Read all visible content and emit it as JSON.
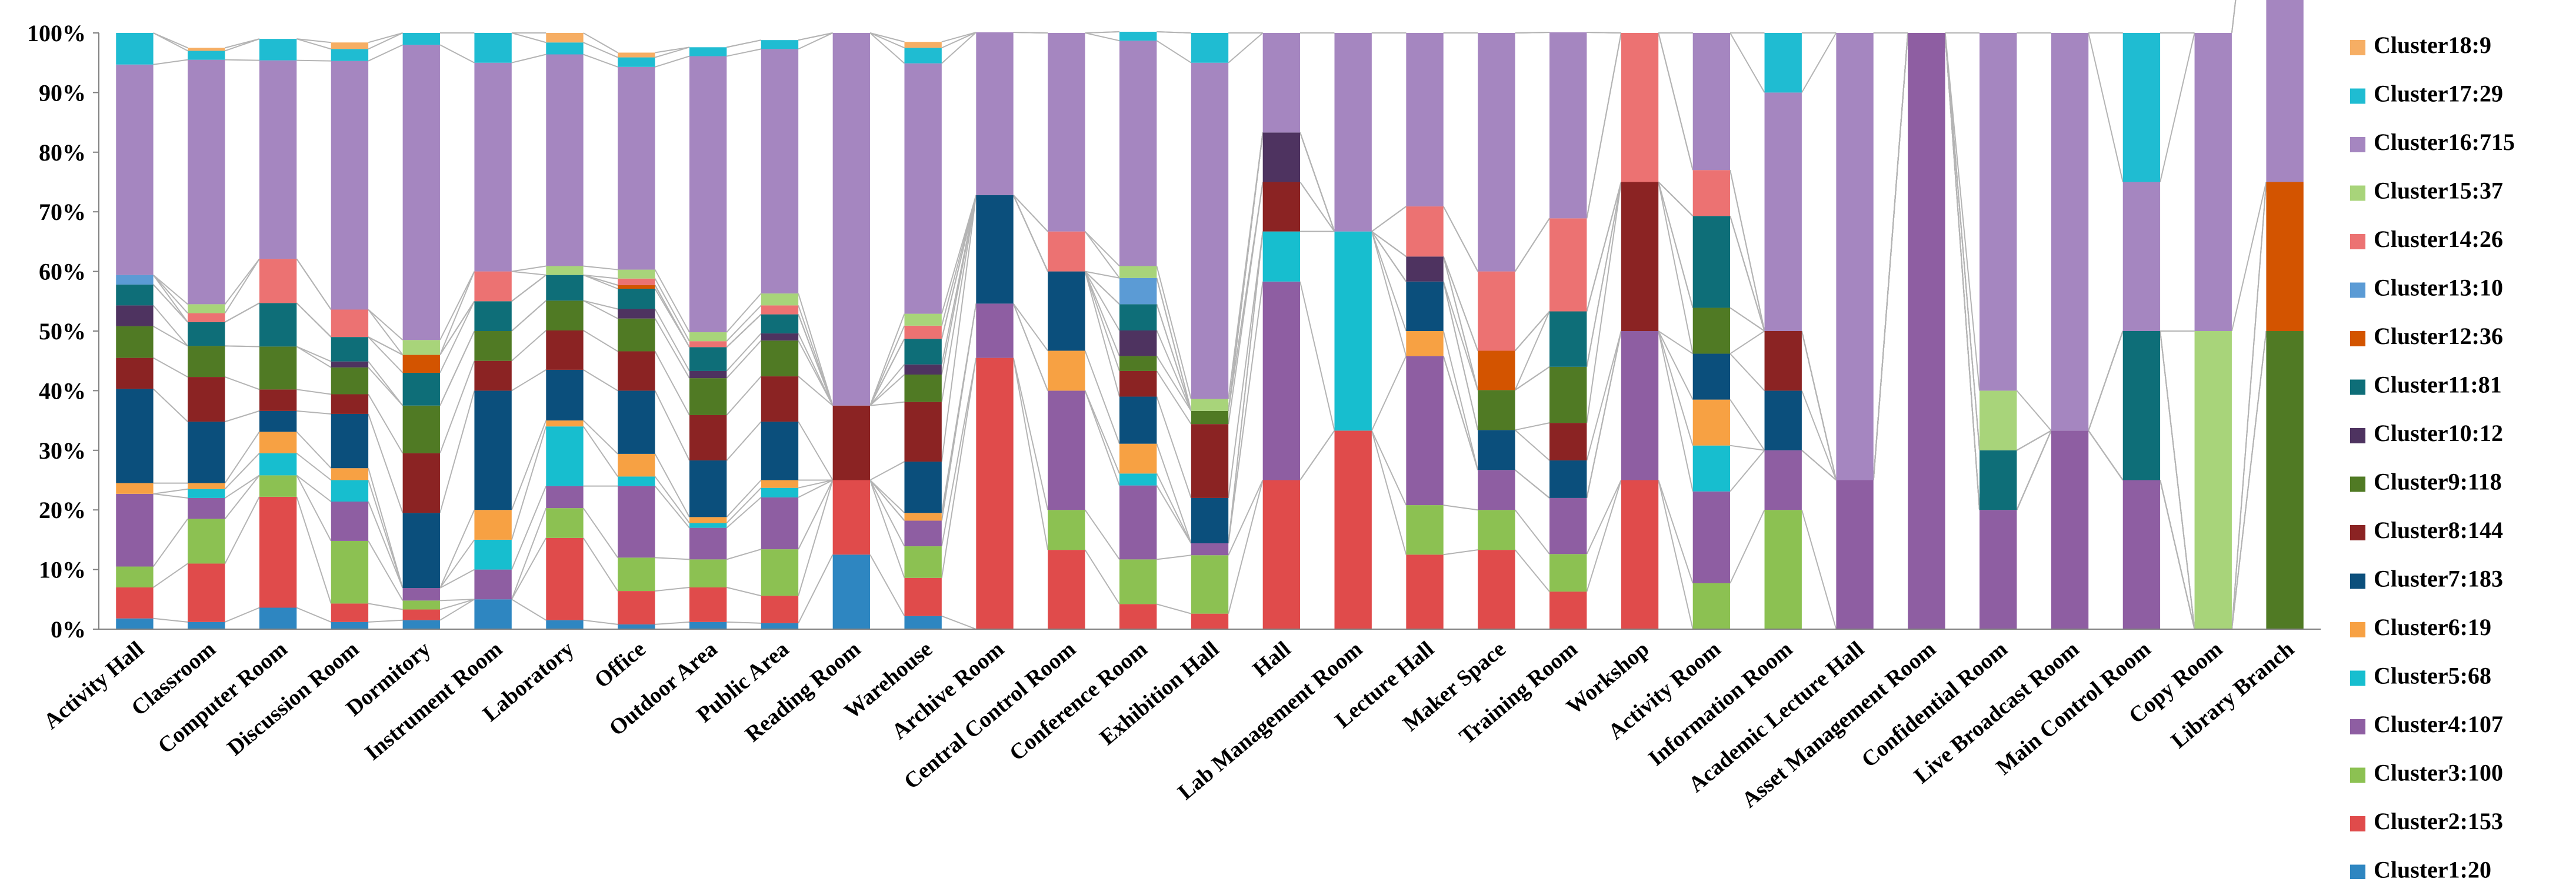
{
  "chart_data": {
    "type": "bar",
    "stacked": true,
    "normalized": true,
    "ylim": [
      0,
      100
    ],
    "yticks": [
      "0%",
      "10%",
      "20%",
      "30%",
      "40%",
      "50%",
      "60%",
      "70%",
      "80%",
      "90%",
      "100%"
    ],
    "categories": [
      "Activity Hall",
      "Classroom",
      "Computer Room",
      "Discussion Room",
      "Dormitory",
      "Instrument Room",
      "Laboratory",
      "Office",
      "Outdoor Area",
      "Public Area",
      "Reading Room",
      "Warehouse",
      "Archive Room",
      "Central Control Room",
      "Conference Room",
      "Exhibition Hall",
      "Hall",
      "Lab Management Room",
      "Lecture Hall",
      "Maker Space",
      "Training Room",
      "Workshop",
      "Activity Room",
      "Information Room",
      "Academic Lecture Hall",
      "Asset Management Room",
      "Confidential Room",
      "Live Broadcast Room",
      "Main Control Room",
      "Copy Room",
      "Library Branch"
    ],
    "series": [
      {
        "name": "Cluster1:20",
        "color": "#2E86C1",
        "values": [
          1.8,
          1.2,
          3.6,
          1.2,
          1.5,
          5.0,
          1.5,
          0.8,
          1.2,
          1.0,
          12.5,
          2.2,
          0,
          0,
          0,
          0,
          0,
          0,
          0,
          0,
          0,
          0,
          0,
          0,
          0,
          0,
          0,
          0,
          0,
          0,
          0
        ]
      },
      {
        "name": "Cluster2:153",
        "color": "#E04B4B",
        "values": [
          5.2,
          9.8,
          18.6,
          3.1,
          1.8,
          0,
          13.8,
          5.6,
          5.8,
          4.6,
          12.5,
          6.4,
          45.5,
          13.3,
          4.2,
          2.6,
          25.0,
          33.3,
          12.5,
          13.3,
          6.3,
          25.0,
          0,
          0,
          0,
          0,
          0,
          0,
          0,
          0,
          0
        ]
      },
      {
        "name": "Cluster3:100",
        "color": "#8CC152",
        "values": [
          3.5,
          7.5,
          3.6,
          10.5,
          1.5,
          0,
          5.0,
          5.6,
          4.7,
          7.8,
          0,
          5.3,
          0,
          6.7,
          7.5,
          9.8,
          0,
          0,
          8.3,
          6.7,
          6.3,
          0,
          7.7,
          20.0,
          0,
          0,
          0,
          0,
          0,
          0,
          0
        ]
      },
      {
        "name": "Cluster4:107",
        "color": "#8E5EA2",
        "values": [
          12.2,
          3.5,
          0,
          6.6,
          2.1,
          5.0,
          3.7,
          12.0,
          5.3,
          8.7,
          0,
          4.3,
          9.1,
          20.0,
          12.4,
          2.0,
          33.3,
          0,
          25.0,
          6.7,
          9.4,
          25.0,
          15.4,
          10.0,
          25.0,
          100,
          20.0,
          33.3,
          25.0,
          0,
          0
        ]
      },
      {
        "name": "Cluster5:68",
        "color": "#17BECF",
        "values": [
          0,
          1.5,
          3.7,
          3.6,
          0,
          5.0,
          10.0,
          1.6,
          0.8,
          1.6,
          0,
          0,
          0,
          0,
          2.0,
          0,
          8.4,
          33.4,
          0,
          0,
          0,
          0,
          7.7,
          0,
          0,
          0,
          0,
          0,
          0,
          0,
          0
        ]
      },
      {
        "name": "Cluster6:19",
        "color": "#F7A143",
        "values": [
          1.8,
          1.0,
          3.6,
          2.0,
          0,
          5.0,
          1.0,
          3.8,
          1.0,
          1.3,
          0,
          1.3,
          0,
          6.7,
          5.0,
          0,
          0,
          0,
          4.2,
          0,
          0,
          0,
          7.7,
          0,
          0,
          0,
          0,
          0,
          0,
          0,
          0
        ]
      },
      {
        "name": "Cluster7:183",
        "color": "#0B4F7C",
        "values": [
          15.8,
          10.3,
          3.5,
          9.1,
          12.6,
          20.0,
          8.5,
          10.6,
          9.5,
          9.8,
          0,
          8.6,
          18.2,
          13.3,
          7.9,
          7.6,
          0,
          0,
          8.3,
          6.7,
          6.3,
          0,
          7.7,
          10.0,
          0,
          0,
          0,
          0,
          0,
          0,
          0
        ]
      },
      {
        "name": "Cluster8:144",
        "color": "#8B2323",
        "values": [
          5.2,
          7.5,
          3.6,
          3.3,
          10.0,
          5.0,
          6.6,
          6.6,
          7.6,
          7.6,
          12.5,
          10.0,
          0,
          0,
          4.3,
          12.4,
          8.3,
          0,
          0,
          0,
          6.3,
          25.0,
          0,
          10.0,
          0,
          0,
          0,
          0,
          0,
          0,
          0
        ]
      },
      {
        "name": "Cluster9:118",
        "color": "#507A24",
        "values": [
          5.3,
          5.2,
          7.2,
          4.5,
          8.0,
          5.0,
          5.0,
          5.5,
          6.2,
          6.0,
          0,
          4.6,
          0,
          0,
          2.5,
          2.2,
          0,
          0,
          0,
          6.7,
          9.4,
          0,
          7.7,
          0,
          0,
          0,
          0,
          0,
          0,
          0,
          50.0
        ]
      },
      {
        "name": "Cluster10:12",
        "color": "#4E3360",
        "values": [
          3.5,
          0,
          0,
          1.0,
          0,
          0,
          0,
          1.6,
          1.2,
          1.2,
          0,
          1.7,
          0,
          0,
          4.3,
          0,
          8.3,
          0,
          4.2,
          0,
          0,
          0,
          0,
          0,
          0,
          0,
          0,
          0,
          0,
          0,
          0
        ]
      },
      {
        "name": "Cluster11:81",
        "color": "#0E6E78",
        "values": [
          3.5,
          4.0,
          7.3,
          4.1,
          5.5,
          5.0,
          4.3,
          3.4,
          4.0,
          3.2,
          0,
          4.3,
          0,
          0,
          4.4,
          0,
          0,
          0,
          0,
          0,
          9.3,
          0,
          15.4,
          0,
          0,
          0,
          10.0,
          0,
          25.0,
          0,
          0
        ]
      },
      {
        "name": "Cluster12:36",
        "color": "#D35400",
        "values": [
          0,
          0,
          0,
          0,
          3.0,
          0,
          0,
          0.6,
          0,
          0,
          0,
          0,
          0,
          0,
          0,
          0,
          0,
          0,
          0,
          6.6,
          0,
          0,
          0,
          0,
          0,
          0,
          0,
          0,
          0,
          0,
          25.0
        ]
      },
      {
        "name": "Cluster13:10",
        "color": "#5B9BD5",
        "values": [
          1.6,
          0,
          0,
          0,
          0,
          0,
          0,
          0,
          0,
          0,
          0,
          0,
          0,
          0,
          4.4,
          0,
          0,
          0,
          0,
          0,
          0,
          0,
          0,
          0,
          0,
          0,
          0,
          0,
          0,
          0,
          0
        ]
      },
      {
        "name": "Cluster14:26",
        "color": "#EC7272",
        "values": [
          0,
          1.5,
          7.4,
          4.6,
          0,
          5.0,
          0,
          1.1,
          1.0,
          1.5,
          0,
          2.2,
          0,
          6.7,
          0,
          0,
          0,
          0,
          8.4,
          13.3,
          15.6,
          25.0,
          7.7,
          0,
          0,
          0,
          0,
          0,
          0,
          0,
          0
        ]
      },
      {
        "name": "Cluster15:37",
        "color": "#A8D47A",
        "values": [
          0,
          1.5,
          0,
          0,
          2.5,
          0,
          1.5,
          1.5,
          1.5,
          2.0,
          0,
          2.0,
          0,
          0,
          2.0,
          2.0,
          0,
          0,
          0,
          0,
          0,
          0,
          0,
          0,
          0,
          0,
          10.0,
          0,
          0,
          50.0,
          0
        ]
      },
      {
        "name": "Cluster16:715",
        "color": "#A586C0",
        "values": [
          35.3,
          41.0,
          33.3,
          41.7,
          49.5,
          35.0,
          35.5,
          34.0,
          46.3,
          41.0,
          62.5,
          42.0,
          27.3,
          33.3,
          37.8,
          56.4,
          16.7,
          33.3,
          29.1,
          40.0,
          31.2,
          0,
          23.0,
          40.0,
          75.0,
          0,
          60.0,
          66.7,
          25.0,
          50.0,
          75.0
        ]
      },
      {
        "name": "Cluster17:29",
        "color": "#1FBCD2",
        "values": [
          5.3,
          1.5,
          3.6,
          2.0,
          2.0,
          5.0,
          2.0,
          1.6,
          1.5,
          1.5,
          0,
          2.6,
          0,
          0,
          1.5,
          5.0,
          0,
          0,
          0,
          0,
          0,
          0,
          0,
          10.0,
          0,
          0,
          0,
          0,
          25.0,
          0,
          0
        ]
      },
      {
        "name": "Cluster18:9",
        "color": "#F6AE64",
        "values": [
          0,
          0.5,
          0,
          1.1,
          0,
          0,
          1.6,
          0.8,
          0,
          0,
          0,
          1.0,
          0,
          0,
          0,
          0,
          0,
          0,
          0,
          0,
          0,
          0,
          0,
          0,
          0,
          0,
          0,
          0,
          0,
          0,
          0
        ]
      }
    ]
  }
}
